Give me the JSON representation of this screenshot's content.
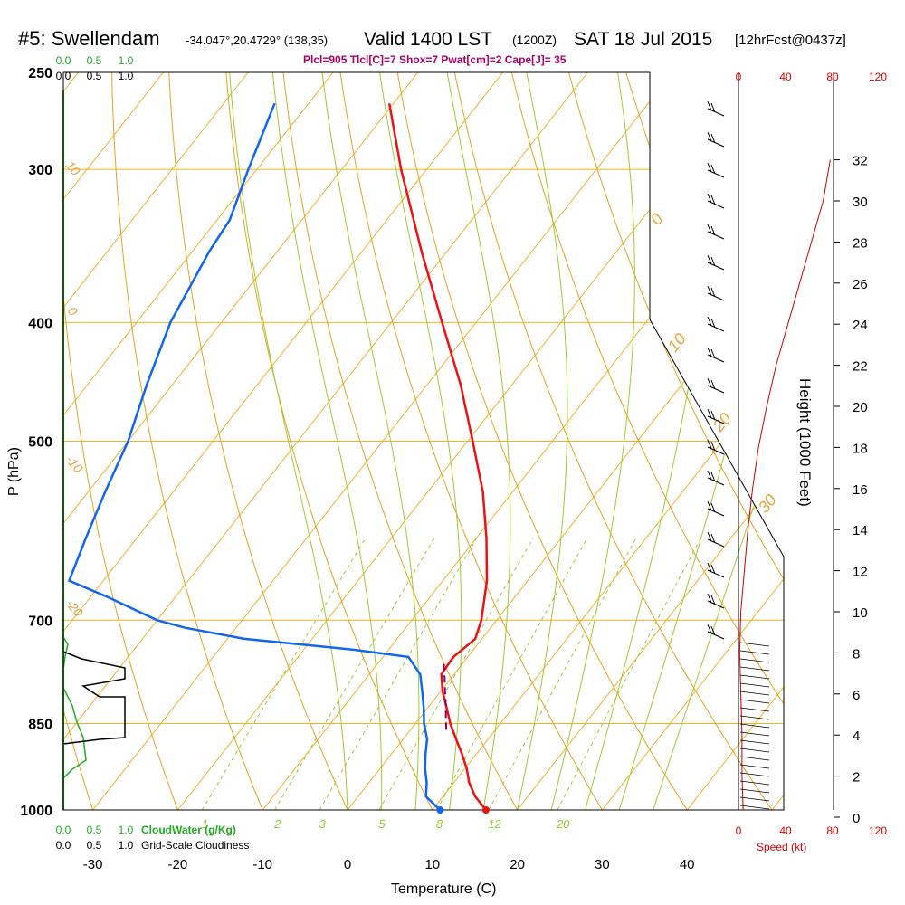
{
  "header": {
    "station": "#5: Swellendam",
    "coords": "-34.047°,20.4729° (138,35)",
    "valid": "Valid 1400 LST",
    "utc": "(1200Z)",
    "date": "SAT 18 Jul 2015",
    "forecast": "[12hrFcst@0437z]",
    "indices": "Plcl=905 Tlcl[C]=7 Shox=7 Pwat[cm]=2 Cape[J]= 35"
  },
  "colors": {
    "temperature": "#ee1111",
    "dewpoint": "#1166ee",
    "parcel": "#880066",
    "isotherm": "#f0b030",
    "dry_adiabat": "#e8a020",
    "moist_adiabat": "#99cc33",
    "mixing_ratio": "#99cc33",
    "cloud_water": "#22aa22",
    "cloudiness": "#000000",
    "wind_speed": "#cc0000"
  },
  "chart_data": {
    "type": "line",
    "title": "#5: Swellendam",
    "xlabel": "Temperature (C)",
    "ylabel": "P (hPa)",
    "y2label": "Height (1000 Feet)",
    "speed_label": "Speed (kt)",
    "cloudwater_label": "CloudWater (g/Kg)",
    "cloudiness_label": "Grid-Scale Cloudiness",
    "x_ticks": [
      "-30",
      "-20",
      "-10",
      "0",
      "10",
      "20",
      "30",
      "40"
    ],
    "x_tick_values": [
      -30,
      -20,
      -10,
      0,
      10,
      20,
      30,
      40
    ],
    "p_ticks": [
      "250",
      "300",
      "400",
      "500",
      "700",
      "850",
      "1000"
    ],
    "p_tick_values": [
      250,
      300,
      400,
      500,
      700,
      850,
      1000
    ],
    "xlim": [
      -35,
      46
    ],
    "plim": [
      250,
      1000
    ],
    "height_ticks": [
      "0",
      "2",
      "4",
      "6",
      "8",
      "10",
      "12",
      "14",
      "16",
      "18",
      "20",
      "22",
      "24",
      "26",
      "28",
      "30",
      "32"
    ],
    "speed_ticks": [
      "0",
      "40",
      "80",
      "120"
    ],
    "cloud_ticks": [
      "0.0",
      "0.5",
      "1.0"
    ],
    "isotherm_labels": [
      "10",
      "0",
      "-10",
      "-20"
    ],
    "dry_adiabat_labels": [
      "0",
      "10",
      "20",
      "30"
    ],
    "mixing_ratio_labels": [
      "1",
      "2",
      "3",
      "5",
      "8",
      "12",
      "20"
    ],
    "series": [
      {
        "name": "temperature",
        "p": [
          1000,
          975,
          950,
          925,
          900,
          875,
          850,
          825,
          800,
          775,
          750,
          725,
          700,
          650,
          600,
          550,
          500,
          450,
          400,
          350,
          300,
          265
        ],
        "t": [
          16.3,
          13.8,
          11.8,
          10.2,
          8.3,
          6.2,
          4.1,
          2.2,
          0.2,
          -1.5,
          -1.7,
          -0.8,
          -1.8,
          -4.8,
          -8.8,
          -13.5,
          -19.4,
          -26.0,
          -34.0,
          -43.0,
          -53.0,
          -60.5
        ]
      },
      {
        "name": "dewpoint",
        "p": [
          1000,
          975,
          950,
          925,
          900,
          875,
          850,
          825,
          800,
          775,
          750,
          740,
          725,
          710,
          700,
          670,
          650,
          600,
          550,
          500,
          450,
          400,
          350,
          330,
          300,
          265
        ],
        "t": [
          10.9,
          8.0,
          6.8,
          5.3,
          4.0,
          2.8,
          1.0,
          -0.5,
          -2.2,
          -4.0,
          -7.0,
          -14.0,
          -28.0,
          -36.0,
          -40.0,
          -48.0,
          -54.0,
          -56.0,
          -58.0,
          -60.0,
          -63.0,
          -66.0,
          -68.0,
          -68.5,
          -71.0,
          -74.0
        ]
      },
      {
        "name": "parcel",
        "p": [
          860,
          840,
          820,
          800,
          780,
          760
        ],
        "t": [
          4.2,
          3.0,
          1.8,
          0.5,
          -0.8,
          -2.2
        ]
      }
    ],
    "surface_points": {
      "temperature": 16.3,
      "dewpoint": 10.9
    },
    "wind_speed_kt": {
      "height_kft": [
        0.3,
        2,
        4,
        6,
        8,
        10,
        12,
        14,
        16,
        18,
        20,
        22,
        24,
        26,
        28,
        30,
        32
      ],
      "speed": [
        4,
        3,
        3,
        2,
        1,
        2,
        5,
        8,
        12,
        17,
        24,
        32,
        42,
        52,
        62,
        72,
        78
      ]
    }
  }
}
